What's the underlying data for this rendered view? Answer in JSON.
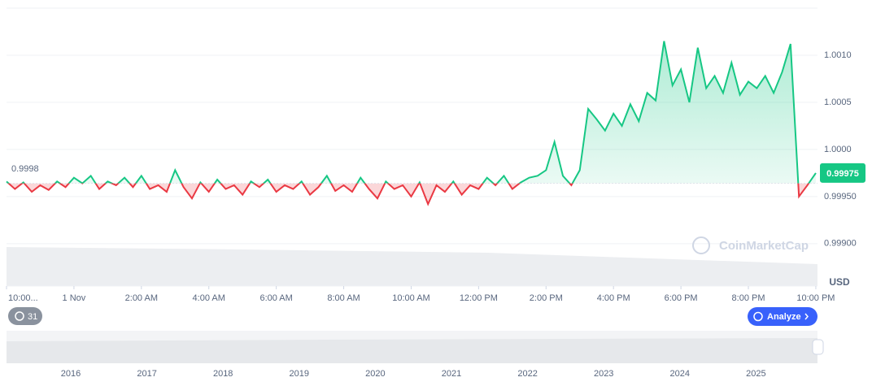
{
  "chart_data": {
    "type": "line",
    "x": [
      -2,
      -1.75,
      -1.5,
      -1.25,
      -1,
      -0.75,
      -0.5,
      -0.25,
      0,
      0.25,
      0.5,
      0.75,
      1,
      1.25,
      1.5,
      1.75,
      2,
      2.25,
      2.5,
      2.75,
      3,
      3.25,
      3.5,
      3.75,
      4,
      4.25,
      4.5,
      4.75,
      5,
      5.25,
      5.5,
      5.75,
      6,
      6.25,
      6.5,
      6.75,
      7,
      7.25,
      7.5,
      7.75,
      8,
      8.25,
      8.5,
      8.75,
      9,
      9.25,
      9.5,
      9.75,
      10,
      10.25,
      10.5,
      10.75,
      11,
      11.25,
      11.5,
      11.75,
      12,
      12.25,
      12.5,
      12.75,
      13,
      13.25,
      13.5,
      13.75,
      14,
      14.25,
      14.5,
      14.75,
      15,
      15.25,
      15.5,
      15.75,
      16,
      16.25,
      16.5,
      16.75,
      17,
      17.25,
      17.5,
      17.75,
      18,
      18.25,
      18.5,
      18.75,
      19,
      19.25,
      19.5,
      19.75,
      20,
      20.25,
      20.5,
      20.75,
      21,
      21.25,
      21.5,
      21.75,
      22
    ],
    "values": [
      0.99966,
      0.99958,
      0.99965,
      0.99955,
      0.99962,
      0.99957,
      0.99966,
      0.9996,
      0.9997,
      0.99964,
      0.99972,
      0.99958,
      0.99966,
      0.99962,
      0.9997,
      0.9996,
      0.99972,
      0.99958,
      0.99962,
      0.99955,
      0.99978,
      0.9996,
      0.99948,
      0.99965,
      0.99955,
      0.99968,
      0.99958,
      0.99962,
      0.99952,
      0.99966,
      0.9996,
      0.99968,
      0.99955,
      0.99962,
      0.99958,
      0.99966,
      0.99952,
      0.9996,
      0.99972,
      0.99956,
      0.99962,
      0.99955,
      0.9997,
      0.99958,
      0.99948,
      0.99966,
      0.99958,
      0.99962,
      0.9995,
      0.99965,
      0.99942,
      0.99962,
      0.99955,
      0.99966,
      0.99952,
      0.99962,
      0.99958,
      0.9997,
      0.99962,
      0.99972,
      0.99958,
      0.99965,
      0.9997,
      0.99972,
      0.99978,
      1.00008,
      0.99972,
      0.99962,
      0.99978,
      1.00043,
      1.00032,
      1.0002,
      1.00038,
      1.00025,
      1.00048,
      1.0003,
      1.0006,
      1.00052,
      1.00115,
      1.00068,
      1.00085,
      1.0005,
      1.00108,
      1.00065,
      1.00078,
      1.0006,
      1.00092,
      1.00058,
      1.00072,
      1.00065,
      1.00078,
      1.0006,
      1.00082,
      1.00112,
      0.9995,
      0.99962,
      0.99975
    ],
    "reference_value": 0.99964,
    "open_label": "0.9998",
    "current_price": 0.99975,
    "colors": {
      "up": "#16c784",
      "down": "#ea3943"
    },
    "xlim": [
      -2,
      22.05
    ],
    "xticks": [
      {
        "value": -2,
        "label": "10:00..."
      },
      {
        "value": 0,
        "label": "1 Nov"
      },
      {
        "value": 2,
        "label": "2:00 AM"
      },
      {
        "value": 4,
        "label": "4:00 AM"
      },
      {
        "value": 6,
        "label": "6:00 AM"
      },
      {
        "value": 8,
        "label": "8:00 AM"
      },
      {
        "value": 10,
        "label": "10:00 AM"
      },
      {
        "value": 12,
        "label": "12:00 PM"
      },
      {
        "value": 14,
        "label": "2:00 PM"
      },
      {
        "value": 16,
        "label": "4:00 PM"
      },
      {
        "value": 18,
        "label": "6:00 PM"
      },
      {
        "value": 20,
        "label": "8:00 PM"
      },
      {
        "value": 22,
        "label": "10:00 PM"
      }
    ],
    "ylim": [
      0.99855,
      1.0015
    ],
    "yticks": [
      {
        "value": 1.001,
        "label": "1.0010"
      },
      {
        "value": 1.0005,
        "label": "1.0005"
      },
      {
        "value": 1.0,
        "label": "1.0000"
      },
      {
        "value": 0.9995,
        "label": "0.99950"
      },
      {
        "value": 0.999,
        "label": "0.99900"
      }
    ],
    "grid": true,
    "y_unit": "USD"
  },
  "navigator": {
    "labels": [
      "2016",
      "2017",
      "2018",
      "2019",
      "2020",
      "2021",
      "2022",
      "2023",
      "2024",
      "2025"
    ]
  },
  "ui": {
    "history_badge": "31",
    "analyze_button": "Analyze",
    "watermark": "CoinMarketCap"
  }
}
